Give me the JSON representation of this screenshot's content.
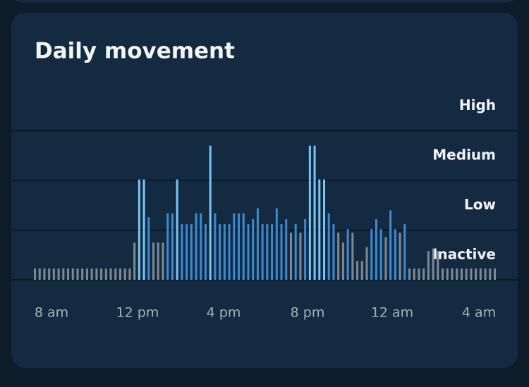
{
  "chart_data": {
    "type": "bar",
    "title": "Daily movement",
    "levels": [
      "Inactive",
      "Low",
      "Medium",
      "High"
    ],
    "ylim": [
      0,
      4
    ],
    "yticks": [
      0,
      1,
      2,
      3
    ],
    "grid": true,
    "level_colors": [
      "#7e8995",
      "#3c8ad2",
      "#78c4f3"
    ],
    "x_tick_labels": [
      "8 am",
      "12 pm",
      "4 pm",
      "8 pm",
      "12 am",
      "4 am"
    ],
    "values": [
      0.23,
      0.23,
      0.23,
      0.23,
      0.23,
      0.23,
      0.23,
      0.23,
      0.23,
      0.23,
      0.23,
      0.23,
      0.23,
      0.23,
      0.23,
      0.23,
      0.23,
      0.23,
      0.23,
      0.23,
      0.23,
      0.75,
      2.02,
      2.02,
      1.26,
      0.75,
      0.75,
      0.75,
      1.34,
      1.34,
      2.02,
      1.12,
      1.12,
      1.12,
      1.34,
      1.34,
      1.12,
      2.7,
      1.34,
      1.12,
      1.12,
      1.12,
      1.34,
      1.34,
      1.34,
      1.12,
      1.22,
      1.44,
      1.12,
      1.12,
      1.12,
      1.44,
      1.12,
      1.22,
      0.95,
      1.12,
      0.95,
      1.22,
      2.7,
      2.7,
      2.02,
      2.02,
      1.34,
      1.12,
      0.95,
      0.75,
      1.02,
      0.95,
      0.38,
      0.38,
      0.66,
      1.02,
      1.22,
      1.02,
      0.86,
      1.4,
      1.02,
      0.95,
      1.12,
      0.23,
      0.23,
      0.23,
      0.23,
      0.58,
      0.63,
      0.58,
      0.23,
      0.23,
      0.23,
      0.23,
      0.23,
      0.23,
      0.23,
      0.23,
      0.23,
      0.23,
      0.23,
      0.23
    ]
  }
}
